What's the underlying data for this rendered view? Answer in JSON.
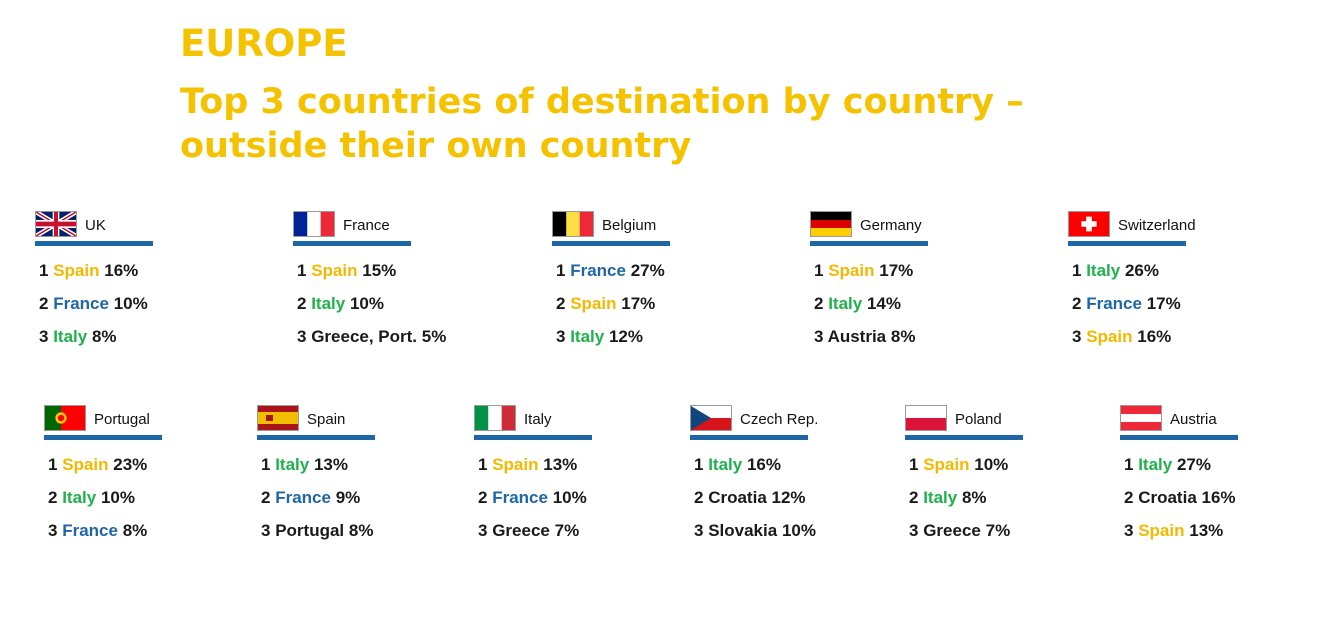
{
  "title": "EUROPE",
  "subtitle_line1": "Top 3 countries of destination by country –",
  "subtitle_line2": "outside their own country",
  "colors": {
    "title": "#f5c200",
    "underline": "#1f66a6",
    "spain": "#f5b800",
    "france": "#1f66a6",
    "italy": "#1db34a",
    "other": "#1a1a1a"
  },
  "countries": [
    {
      "name": "UK",
      "flag": "uk-flag",
      "top3": [
        {
          "rank": "1",
          "country": "Spain",
          "pct": "16%",
          "color": "#f5b800"
        },
        {
          "rank": "2",
          "country": "France",
          "pct": "10%",
          "color": "#1f66a6"
        },
        {
          "rank": "3",
          "country": "Italy",
          "pct": "8%",
          "color": "#1db34a"
        }
      ]
    },
    {
      "name": "France",
      "flag": "france-flag",
      "top3": [
        {
          "rank": "1",
          "country": "Spain",
          "pct": "15%",
          "color": "#f5b800"
        },
        {
          "rank": "2",
          "country": "Italy",
          "pct": "10%",
          "color": "#1db34a"
        },
        {
          "rank": "3",
          "country": "Greece, Port.",
          "pct": "5%",
          "color": "#1a1a1a"
        }
      ]
    },
    {
      "name": "Belgium",
      "flag": "belgium-flag",
      "top3": [
        {
          "rank": "1",
          "country": "France",
          "pct": "27%",
          "color": "#1f66a6"
        },
        {
          "rank": "2",
          "country": "Spain",
          "pct": "17%",
          "color": "#f5b800"
        },
        {
          "rank": "3",
          "country": "Italy",
          "pct": "12%",
          "color": "#1db34a"
        }
      ]
    },
    {
      "name": "Germany",
      "flag": "germany-flag",
      "top3": [
        {
          "rank": "1",
          "country": "Spain",
          "pct": "17%",
          "color": "#f5b800"
        },
        {
          "rank": "2",
          "country": "Italy",
          "pct": "14%",
          "color": "#1db34a"
        },
        {
          "rank": "3",
          "country": "Austria",
          "pct": "8%",
          "color": "#1a1a1a"
        }
      ]
    },
    {
      "name": "Switzerland",
      "flag": "switzerland-flag",
      "top3": [
        {
          "rank": "1",
          "country": "Italy",
          "pct": "26%",
          "color": "#1db34a"
        },
        {
          "rank": "2",
          "country": "France",
          "pct": "17%",
          "color": "#1f66a6"
        },
        {
          "rank": "3",
          "country": "Spain",
          "pct": "16%",
          "color": "#f5b800"
        }
      ]
    },
    {
      "name": "Portugal",
      "flag": "portugal-flag",
      "top3": [
        {
          "rank": "1",
          "country": "Spain",
          "pct": "23%",
          "color": "#f5b800"
        },
        {
          "rank": "2",
          "country": "Italy",
          "pct": "10%",
          "color": "#1db34a"
        },
        {
          "rank": "3",
          "country": "France",
          "pct": "8%",
          "color": "#1f66a6"
        }
      ]
    },
    {
      "name": "Spain",
      "flag": "spain-flag",
      "top3": [
        {
          "rank": "1",
          "country": "Italy",
          "pct": "13%",
          "color": "#1db34a"
        },
        {
          "rank": "2",
          "country": "France",
          "pct": "9%",
          "color": "#1f66a6"
        },
        {
          "rank": "3",
          "country": "Portugal",
          "pct": "8%",
          "color": "#1a1a1a"
        }
      ]
    },
    {
      "name": "Italy",
      "flag": "italy-flag",
      "top3": [
        {
          "rank": "1",
          "country": "Spain",
          "pct": "13%",
          "color": "#f5b800"
        },
        {
          "rank": "2",
          "country": "France",
          "pct": "10%",
          "color": "#1f66a6"
        },
        {
          "rank": "3",
          "country": "Greece",
          "pct": "7%",
          "color": "#1a1a1a"
        }
      ]
    },
    {
      "name": "Czech Rep.",
      "flag": "czech-flag",
      "top3": [
        {
          "rank": "1",
          "country": "Italy",
          "pct": "16%",
          "color": "#1db34a"
        },
        {
          "rank": "2",
          "country": "Croatia",
          "pct": "12%",
          "color": "#1a1a1a"
        },
        {
          "rank": "3",
          "country": "Slovakia",
          "pct": "10%",
          "color": "#1a1a1a"
        }
      ]
    },
    {
      "name": "Poland",
      "flag": "poland-flag",
      "top3": [
        {
          "rank": "1",
          "country": "Spain",
          "pct": "10%",
          "color": "#f5b800"
        },
        {
          "rank": "2",
          "country": "Italy",
          "pct": "8%",
          "color": "#1db34a"
        },
        {
          "rank": "3",
          "country": "Greece",
          "pct": "7%",
          "color": "#1a1a1a"
        }
      ]
    },
    {
      "name": "Austria",
      "flag": "austria-flag",
      "top3": [
        {
          "rank": "1",
          "country": "Italy",
          "pct": "27%",
          "color": "#1db34a"
        },
        {
          "rank": "2",
          "country": "Croatia",
          "pct": "16%",
          "color": "#1a1a1a"
        },
        {
          "rank": "3",
          "country": "Spain",
          "pct": "13%",
          "color": "#f5b800"
        }
      ]
    }
  ]
}
